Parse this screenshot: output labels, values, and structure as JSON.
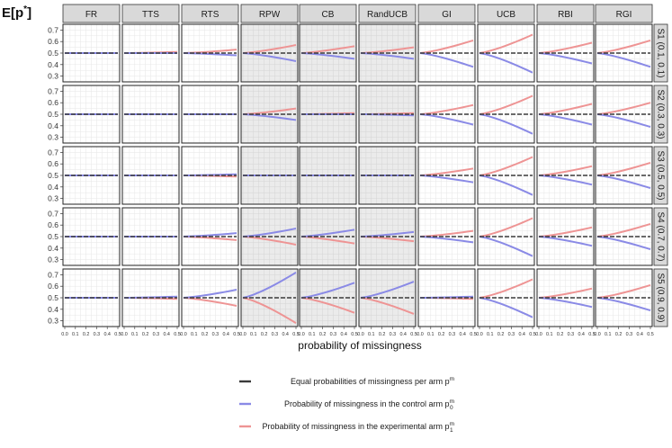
{
  "chart_data": {
    "type": "line",
    "ylabel": "E[p̂*]",
    "xlabel": "probability of missingness",
    "xlim": [
      0,
      0.5
    ],
    "ylim": [
      0.25,
      0.75
    ],
    "x": [
      0,
      0.05,
      0.1,
      0.15,
      0.2,
      0.25,
      0.3,
      0.35,
      0.4,
      0.45,
      0.5
    ],
    "x_ticks": [
      "0.0",
      "0.1",
      "0.2",
      "0.3",
      "0.4",
      "0.5"
    ],
    "y_ticks": [
      "0.3",
      "0.4",
      "0.5",
      "0.6",
      "0.7"
    ],
    "grid": true,
    "methods": [
      "FR",
      "TTS",
      "RTS",
      "RPW",
      "CB",
      "RandUCB",
      "GI",
      "UCB",
      "RBI",
      "RGI"
    ],
    "shaded_methods": [
      "RPW",
      "CB",
      "RandUCB"
    ],
    "scenarios": [
      "S1 (0.1, 0.1)",
      "S2 (0.3, 0.3)",
      "S3 (0.5, 0.5)",
      "S4 (0.7, 0.7)",
      "S5 (0.9, 0.9)"
    ],
    "series_colors": {
      "equal": "#3a3a3a",
      "control": "#8a8ae6",
      "experimental": "#ee9494"
    },
    "legend": [
      {
        "key": "equal",
        "label": "Equal probabilities of missingness per arm p",
        "sup": "m",
        "sub": ""
      },
      {
        "key": "control",
        "label": "Probability of missingness in the control arm p",
        "sup": "m",
        "sub": "0"
      },
      {
        "key": "experimental",
        "label": "Probability of missingness in the experimental arm p",
        "sup": "m",
        "sub": "1"
      }
    ],
    "end_values": {
      "S1": {
        "FR": [
          0.5,
          0.5
        ],
        "TTS": [
          0.5,
          0.51
        ],
        "RTS": [
          0.48,
          0.53
        ],
        "RPW": [
          0.43,
          0.57
        ],
        "CB": [
          0.45,
          0.56
        ],
        "RandUCB": [
          0.45,
          0.55
        ],
        "GI": [
          0.38,
          0.61
        ],
        "UCB": [
          0.33,
          0.66
        ],
        "RBI": [
          0.41,
          0.59
        ],
        "RGI": [
          0.38,
          0.61
        ]
      },
      "S2": {
        "FR": [
          0.5,
          0.5
        ],
        "TTS": [
          0.5,
          0.5
        ],
        "RTS": [
          0.5,
          0.5
        ],
        "RPW": [
          0.45,
          0.55
        ],
        "CB": [
          0.5,
          0.51
        ],
        "RandUCB": [
          0.49,
          0.51
        ],
        "GI": [
          0.41,
          0.58
        ],
        "UCB": [
          0.33,
          0.66
        ],
        "RBI": [
          0.41,
          0.59
        ],
        "RGI": [
          0.39,
          0.6
        ]
      },
      "S3": {
        "FR": [
          0.5,
          0.5
        ],
        "TTS": [
          0.5,
          0.5
        ],
        "RTS": [
          0.51,
          0.49
        ],
        "RPW": [
          0.5,
          0.5
        ],
        "CB": [
          0.5,
          0.5
        ],
        "RandUCB": [
          0.5,
          0.5
        ],
        "GI": [
          0.44,
          0.56
        ],
        "UCB": [
          0.33,
          0.66
        ],
        "RBI": [
          0.42,
          0.58
        ],
        "RGI": [
          0.39,
          0.61
        ]
      },
      "S4": {
        "FR": [
          0.5,
          0.5
        ],
        "TTS": [
          0.5,
          0.5
        ],
        "RTS": [
          0.53,
          0.47
        ],
        "RPW": [
          0.57,
          0.43
        ],
        "CB": [
          0.56,
          0.44
        ],
        "RandUCB": [
          0.54,
          0.46
        ],
        "GI": [
          0.45,
          0.55
        ],
        "UCB": [
          0.33,
          0.66
        ],
        "RBI": [
          0.42,
          0.58
        ],
        "RGI": [
          0.39,
          0.61
        ]
      },
      "S5": {
        "FR": [
          0.5,
          0.5
        ],
        "TTS": [
          0.51,
          0.49
        ],
        "RTS": [
          0.57,
          0.43
        ],
        "RPW": [
          0.72,
          0.28
        ],
        "CB": [
          0.63,
          0.37
        ],
        "RandUCB": [
          0.64,
          0.36
        ],
        "GI": [
          0.51,
          0.49
        ],
        "UCB": [
          0.33,
          0.66
        ],
        "RBI": [
          0.42,
          0.58
        ],
        "RGI": [
          0.39,
          0.61
        ]
      }
    }
  }
}
